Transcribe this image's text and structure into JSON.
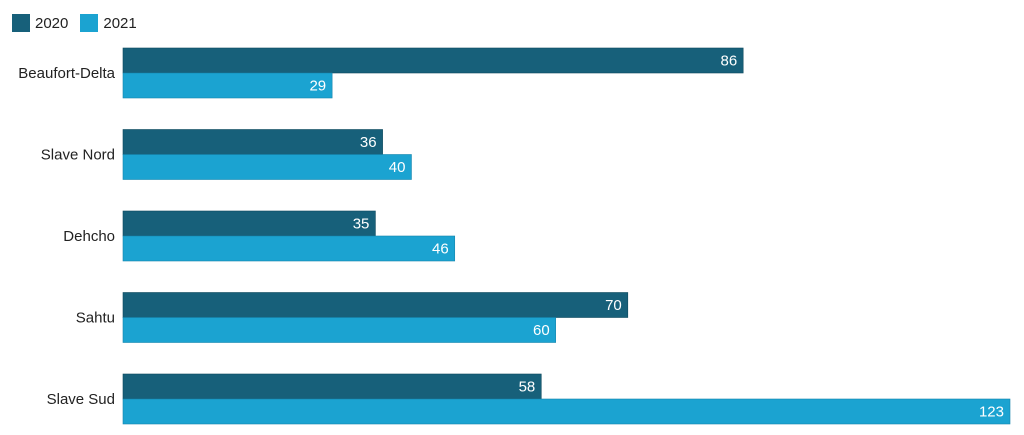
{
  "chart_data": {
    "type": "bar",
    "orientation": "horizontal",
    "categories": [
      "Beaufort-Delta",
      "Slave Nord",
      "Dehcho",
      "Sahtu",
      "Slave Sud"
    ],
    "series": [
      {
        "name": "2020",
        "color": "#17607a",
        "values": [
          86,
          36,
          35,
          70,
          58
        ]
      },
      {
        "name": "2021",
        "color": "#1ba3d1",
        "values": [
          29,
          40,
          46,
          60,
          123
        ]
      }
    ],
    "title": "",
    "xlabel": "",
    "ylabel": "",
    "xlim": [
      0,
      123
    ],
    "grid": false,
    "legend_position": "top-left",
    "data_labels": true
  }
}
